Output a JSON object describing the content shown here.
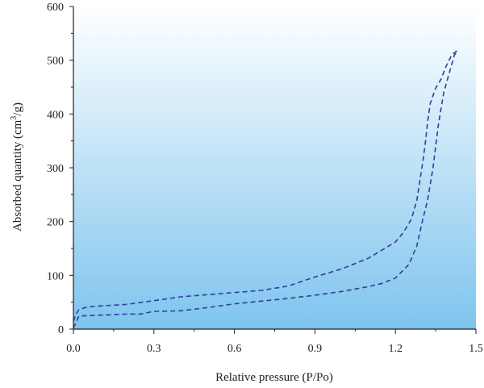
{
  "chart_data": {
    "type": "line",
    "title": "",
    "xlabel": "Relative pressure (P/Po)",
    "ylabel_parts": [
      "Absorbed quantity (cm",
      "3",
      "/g)"
    ],
    "xlim": [
      0,
      1.5
    ],
    "ylim": [
      0,
      600
    ],
    "xticks": [
      "0.0",
      "0.3",
      "0.6",
      "0.9",
      "1.2",
      "1.5"
    ],
    "yticks": [
      "0",
      "100",
      "200",
      "300",
      "400",
      "500",
      "600"
    ],
    "grid": false,
    "legend": "none",
    "colors": {
      "line": "#2e3f9a",
      "plot_bg_top": "#ffffff",
      "plot_bg_bottom": "#7ec4ee"
    },
    "series": [
      {
        "x": [
          0.0,
          0.02,
          0.05,
          0.1,
          0.2,
          0.25,
          0.3,
          0.4,
          0.5,
          0.6,
          0.7,
          0.8,
          0.9,
          1.0,
          1.1,
          1.15,
          1.2,
          1.25,
          1.28,
          1.3,
          1.32,
          1.34,
          1.36,
          1.38,
          1.4,
          1.42,
          1.43
        ],
        "y": [
          2,
          24,
          25,
          26,
          28,
          28,
          33,
          34,
          40,
          47,
          52,
          57,
          63,
          70,
          79,
          85,
          95,
          120,
          155,
          200,
          240,
          300,
          380,
          440,
          475,
          510,
          515
        ]
      },
      {
        "x": [
          0.0,
          0.01,
          0.02,
          0.05,
          0.1,
          0.2,
          0.3,
          0.4,
          0.5,
          0.6,
          0.7,
          0.8,
          0.9,
          1.0,
          1.1,
          1.15,
          1.2,
          1.23,
          1.26,
          1.28,
          1.3,
          1.31,
          1.32,
          1.33,
          1.35,
          1.37,
          1.39,
          1.41,
          1.43
        ],
        "y": [
          15,
          28,
          36,
          41,
          43,
          46,
          53,
          60,
          64,
          68,
          72,
          80,
          97,
          112,
          132,
          147,
          162,
          180,
          205,
          240,
          305,
          340,
          385,
          420,
          448,
          465,
          490,
          510,
          518
        ]
      }
    ]
  }
}
